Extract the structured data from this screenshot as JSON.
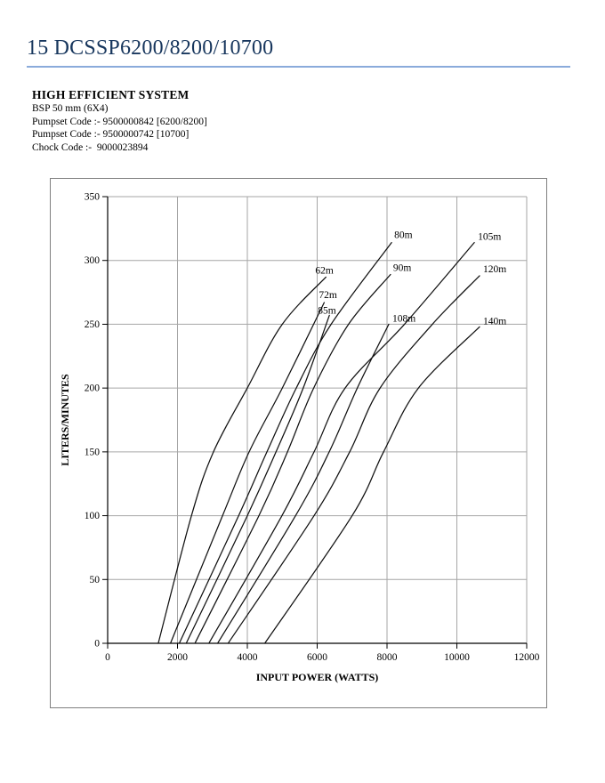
{
  "page": {
    "title": "15 DCSSP6200/8200/10700",
    "heading": "HIGH EFFICIENT SYSTEM",
    "spec_lines": [
      "BSP 50 mm (6X4)",
      "Pumpset Code :- 9500000842 [6200/8200]",
      "Pumpset Code :- 9500000742 [10700]",
      "Chock Code :-  9000023894"
    ]
  },
  "colors": {
    "title_text": "#17365d",
    "title_rule": "#8aabdb",
    "frame_border": "#7f7f7f",
    "gridline": "#a6a6a6",
    "axis": "#000000",
    "curve": "#111111",
    "label_text": "#000000"
  },
  "chart_data": {
    "type": "line",
    "title": "",
    "xlabel": "INPUT POWER (WATTS)",
    "ylabel": "LITERS/MINUTES",
    "xlim": [
      0,
      12000
    ],
    "ylim": [
      0,
      350
    ],
    "xticks": [
      0,
      2000,
      4000,
      6000,
      8000,
      10000,
      12000
    ],
    "yticks": [
      0,
      50,
      100,
      150,
      200,
      250,
      300,
      350
    ],
    "grid": true,
    "legend": "inline labels at curve ends",
    "series": [
      {
        "name": "62m",
        "points": [
          [
            1450,
            0
          ],
          [
            2400,
            100
          ],
          [
            3030,
            150
          ],
          [
            4000,
            200
          ],
          [
            5000,
            250
          ],
          [
            6250,
            287
          ]
        ],
        "label_offset": [
          -12,
          -4
        ]
      },
      {
        "name": "72m",
        "points": [
          [
            1800,
            0
          ],
          [
            3290,
            100
          ],
          [
            4050,
            150
          ],
          [
            5000,
            200
          ],
          [
            6200,
            267
          ]
        ],
        "label_offset": [
          -6,
          -5
        ]
      },
      {
        "name": "80m",
        "points": [
          [
            2050,
            0
          ],
          [
            3750,
            100
          ],
          [
            4560,
            150
          ],
          [
            5400,
            200
          ],
          [
            6400,
            250
          ],
          [
            8130,
            314
          ]
        ],
        "label_offset": [
          3,
          -5
        ]
      },
      {
        "name": "85m",
        "points": [
          [
            2250,
            0
          ],
          [
            4000,
            100
          ],
          [
            4820,
            150
          ],
          [
            5600,
            200
          ],
          [
            6350,
            257
          ]
        ],
        "label_offset": [
          -13,
          -2
        ]
      },
      {
        "name": "90m",
        "points": [
          [
            2500,
            0
          ],
          [
            4330,
            100
          ],
          [
            5150,
            150
          ],
          [
            5900,
            200
          ],
          [
            6900,
            250
          ],
          [
            8100,
            289
          ]
        ],
        "label_offset": [
          3,
          -4
        ]
      },
      {
        "name": "105m",
        "points": [
          [
            2900,
            0
          ],
          [
            4990,
            100
          ],
          [
            5910,
            150
          ],
          [
            6800,
            200
          ],
          [
            8500,
            250
          ],
          [
            10500,
            314
          ]
        ],
        "label_offset": [
          4,
          -3
        ]
      },
      {
        "name": "108m",
        "points": [
          [
            3150,
            0
          ],
          [
            5380,
            100
          ],
          [
            6345,
            150
          ],
          [
            7150,
            200
          ],
          [
            8050,
            250
          ]
        ],
        "label_offset": [
          4,
          -3
        ]
      },
      {
        "name": "120m",
        "points": [
          [
            3450,
            0
          ],
          [
            5910,
            100
          ],
          [
            6930,
            150
          ],
          [
            7800,
            200
          ],
          [
            9300,
            250
          ],
          [
            10650,
            288
          ]
        ],
        "label_offset": [
          4,
          -4
        ]
      },
      {
        "name": "140m",
        "points": [
          [
            4500,
            0
          ],
          [
            7000,
            100
          ],
          [
            7900,
            150
          ],
          [
            8900,
            200
          ],
          [
            10650,
            248
          ]
        ],
        "label_offset": [
          4,
          -3
        ]
      }
    ]
  }
}
